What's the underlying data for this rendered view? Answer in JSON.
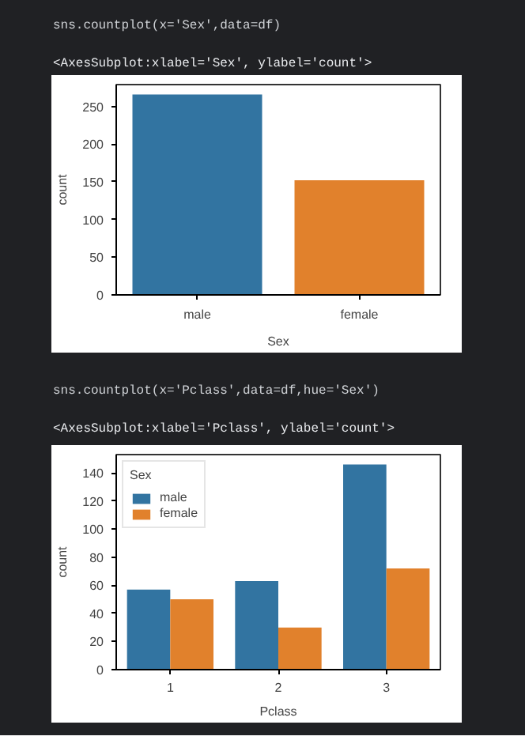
{
  "chart_data": [
    {
      "type": "bar",
      "annotations": [
        "sns.countplot(x='Sex',data=df)",
        "<AxesSubplot:xlabel='Sex', ylabel='count'>"
      ],
      "xlabel": "Sex",
      "ylabel": "count",
      "categories": [
        "male",
        "female"
      ],
      "values": [
        266,
        152
      ],
      "colors": [
        "#3274a1",
        "#e1812c"
      ],
      "ylim": [
        0,
        279
      ],
      "yticks": [
        0,
        50,
        100,
        150,
        200,
        250
      ],
      "grid": false
    },
    {
      "type": "bar",
      "annotations": [
        "sns.countplot(x='Pclass',data=df,hue='Sex')",
        "<AxesSubplot:xlabel='Pclass', ylabel='count'>"
      ],
      "xlabel": "Pclass",
      "ylabel": "count",
      "categories": [
        "1",
        "2",
        "3"
      ],
      "legend_title": "Sex",
      "legend": "top left",
      "series": [
        {
          "name": "male",
          "color": "#3274a1",
          "values": [
            57,
            63,
            146
          ]
        },
        {
          "name": "female",
          "color": "#e1812c",
          "values": [
            50,
            30,
            72
          ]
        }
      ],
      "ylim": [
        0,
        153
      ],
      "yticks": [
        0,
        20,
        40,
        60,
        80,
        100,
        120,
        140
      ],
      "grid": false
    }
  ]
}
